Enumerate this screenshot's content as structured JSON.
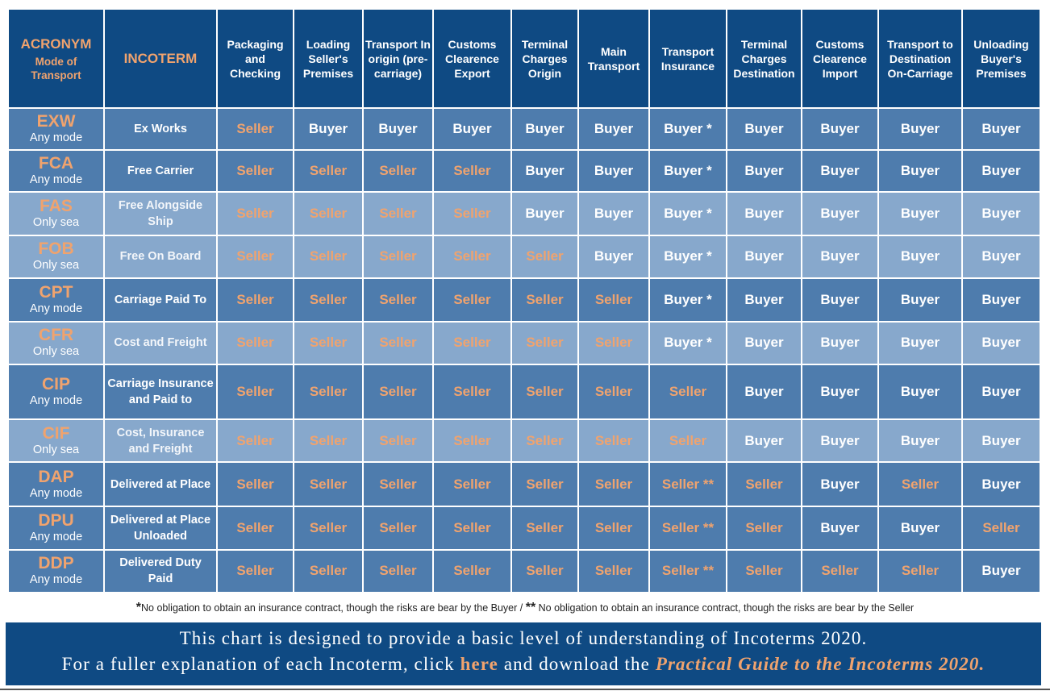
{
  "columns": {
    "acronym": "ACRONYM",
    "mode": "Mode of Transport",
    "incoterm": "INCOTERM",
    "stages": [
      "Packaging and Checking",
      "Loading Seller's Premises",
      "Transport In origin (pre-carriage)",
      "Customs Clearence Export",
      "Terminal Charges Origin",
      "Main Transport",
      "Transport Insurance",
      "Terminal Charges Destination",
      "Customs Clearence Import",
      "Transport to Destination On-Carriage",
      "Unloading Buyer's Premises"
    ]
  },
  "rows": [
    {
      "code": "EXW",
      "mode": "Any mode",
      "name": "Ex Works",
      "shade": "dark",
      "cells": [
        "Seller",
        "Buyer",
        "Buyer",
        "Buyer",
        "Buyer",
        "Buyer",
        "Buyer *",
        "Buyer",
        "Buyer",
        "Buyer",
        "Buyer"
      ]
    },
    {
      "code": "FCA",
      "mode": "Any mode",
      "name": "Free Carrier",
      "shade": "dark",
      "cells": [
        "Seller",
        "Seller",
        "Seller",
        "Seller",
        "Buyer",
        "Buyer",
        "Buyer *",
        "Buyer",
        "Buyer",
        "Buyer",
        "Buyer"
      ]
    },
    {
      "code": "FAS",
      "mode": "Only sea",
      "name": "Free Alongside Ship",
      "shade": "light",
      "cells": [
        "Seller",
        "Seller",
        "Seller",
        "Seller",
        "Buyer",
        "Buyer",
        "Buyer *",
        "Buyer",
        "Buyer",
        "Buyer",
        "Buyer"
      ]
    },
    {
      "code": "FOB",
      "mode": "Only sea",
      "name": "Free On Board",
      "shade": "light",
      "cells": [
        "Seller",
        "Seller",
        "Seller",
        "Seller",
        "Seller",
        "Buyer",
        "Buyer *",
        "Buyer",
        "Buyer",
        "Buyer",
        "Buyer"
      ]
    },
    {
      "code": "CPT",
      "mode": "Any mode",
      "name": "Carriage Paid To",
      "shade": "dark",
      "cells": [
        "Seller",
        "Seller",
        "Seller",
        "Seller",
        "Seller",
        "Seller",
        "Buyer *",
        "Buyer",
        "Buyer",
        "Buyer",
        "Buyer"
      ]
    },
    {
      "code": "CFR",
      "mode": "Only sea",
      "name": "Cost and Freight",
      "shade": "light",
      "cells": [
        "Seller",
        "Seller",
        "Seller",
        "Seller",
        "Seller",
        "Seller",
        "Buyer *",
        "Buyer",
        "Buyer",
        "Buyer",
        "Buyer"
      ]
    },
    {
      "code": "CIP",
      "mode": "Any mode",
      "name": "Carriage Insurance and Paid to",
      "shade": "dark",
      "cells": [
        "Seller",
        "Seller",
        "Seller",
        "Seller",
        "Seller",
        "Seller",
        "Seller",
        "Buyer",
        "Buyer",
        "Buyer",
        "Buyer"
      ]
    },
    {
      "code": "CIF",
      "mode": "Only sea",
      "name": "Cost, Insurance and Freight",
      "shade": "light",
      "cells": [
        "Seller",
        "Seller",
        "Seller",
        "Seller",
        "Seller",
        "Seller",
        "Seller",
        "Buyer",
        "Buyer",
        "Buyer",
        "Buyer"
      ]
    },
    {
      "code": "DAP",
      "mode": "Any mode",
      "name": "Delivered at Place",
      "shade": "dark",
      "cells": [
        "Seller",
        "Seller",
        "Seller",
        "Seller",
        "Seller",
        "Seller",
        "Seller **",
        "Seller",
        "Buyer",
        "Seller",
        "Buyer"
      ]
    },
    {
      "code": "DPU",
      "mode": "Any mode",
      "name": "Delivered at Place Unloaded",
      "shade": "dark",
      "cells": [
        "Seller",
        "Seller",
        "Seller",
        "Seller",
        "Seller",
        "Seller",
        "Seller **",
        "Seller",
        "Buyer",
        "Buyer",
        "Seller"
      ]
    },
    {
      "code": "DDP",
      "mode": "Any mode",
      "name": "Delivered Duty Paid",
      "shade": "dark",
      "cells": [
        "Seller",
        "Seller",
        "Seller",
        "Seller",
        "Seller",
        "Seller",
        "Seller **",
        "Seller",
        "Seller",
        "Seller",
        "Buyer"
      ]
    }
  ],
  "footnote": {
    "star1": "*",
    "text1": "No obligation to obtain an insurance contract, though the risks are bear by the Buyer / ",
    "star2": "**",
    "text2": " No obligation to obtain an insurance contract, though the risks are bear by the Seller"
  },
  "banner": {
    "line1": "This chart is designed to provide a basic level of understanding of Incoterms 2020.",
    "line2_prefix": "For a fuller explanation of each Incoterm, click ",
    "link": "here",
    "line2_middle": " and download the ",
    "guide": "Practical Guide to the Incoterms 2020."
  },
  "colors": {
    "header_bg": "#0f4a83",
    "row_dark": "#4e7cad",
    "row_light": "#87a8cc",
    "seller": "#f0a36e",
    "buyer": "#ffffff"
  }
}
